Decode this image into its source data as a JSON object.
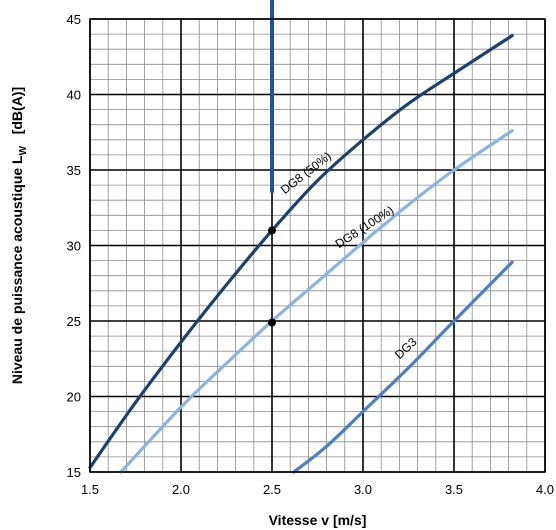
{
  "chart_data": {
    "type": "line",
    "title": "",
    "xlabel": "Vitesse v [m/s]",
    "ylabel": {
      "main": "Niveau de puissance acoustique L",
      "sub": "W",
      "unit": "   [dB(A)]"
    },
    "xlim": [
      1.5,
      4.0
    ],
    "ylim": [
      15,
      45
    ],
    "grid": true,
    "x_ticks": [
      "1.5",
      "2.0",
      "2.5",
      "3.0",
      "3.5",
      "4.0"
    ],
    "y_ticks": [
      "15",
      "20",
      "25",
      "30",
      "35",
      "40",
      "45"
    ],
    "series": [
      {
        "name": "DG8 (50%)",
        "color": "#1f3f6f",
        "x": [
          1.5,
          1.75,
          2.0,
          2.25,
          2.5,
          2.75,
          3.0,
          3.25,
          3.5,
          3.82
        ],
        "y": [
          15.3,
          19.6,
          23.6,
          27.4,
          31.0,
          34.3,
          37.0,
          39.4,
          41.4,
          43.9
        ]
      },
      {
        "name": "DG8 (100%)",
        "color": "#8db4e0",
        "x": [
          1.67,
          2.0,
          2.25,
          2.5,
          2.75,
          3.0,
          3.25,
          3.5,
          3.82
        ],
        "y": [
          15.0,
          19.3,
          22.2,
          25.0,
          27.6,
          30.2,
          32.7,
          35.0,
          37.6
        ]
      },
      {
        "name": "DG3",
        "color": "#4a7fc6",
        "x": [
          2.62,
          2.8,
          3.0,
          3.25,
          3.5,
          3.82
        ],
        "y": [
          15.0,
          16.7,
          19.0,
          21.9,
          25.0,
          28.9
        ]
      }
    ],
    "markers": [
      {
        "x": 2.5,
        "y": 31.0
      },
      {
        "x": 2.5,
        "y": 24.9
      }
    ],
    "reference_line": {
      "x": 2.5,
      "y_from": 33.5,
      "color": "#2251a3"
    }
  }
}
